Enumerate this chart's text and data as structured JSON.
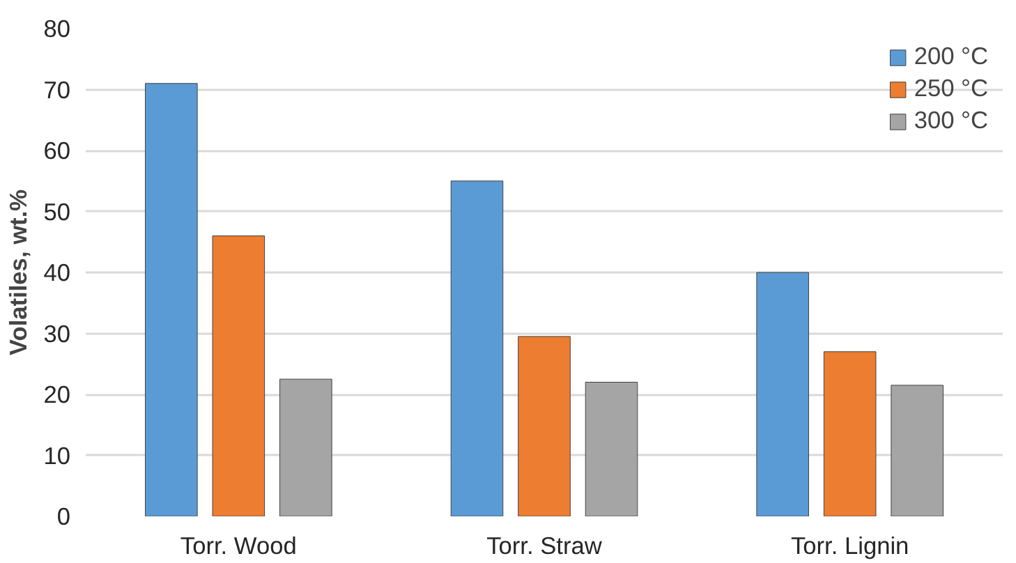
{
  "chart_data": {
    "type": "bar",
    "ylabel": "Volatiles, wt.%",
    "categories": [
      "Torr. Wood",
      "Torr. Straw",
      "Torr. Lignin"
    ],
    "series": [
      {
        "name": "200 °C",
        "color": "#5b9bd5",
        "values": [
          71,
          55,
          40
        ]
      },
      {
        "name": "250 °C",
        "color": "#ed7d31",
        "values": [
          46,
          29.5,
          27
        ]
      },
      {
        "name": "300 °C",
        "color": "#a5a5a5",
        "values": [
          22.5,
          22,
          21.5
        ]
      }
    ],
    "ylim": [
      0,
      80
    ],
    "yticks": [
      0,
      10,
      20,
      30,
      40,
      50,
      60,
      70,
      80
    ],
    "grid": "y",
    "legend": "top right"
  }
}
